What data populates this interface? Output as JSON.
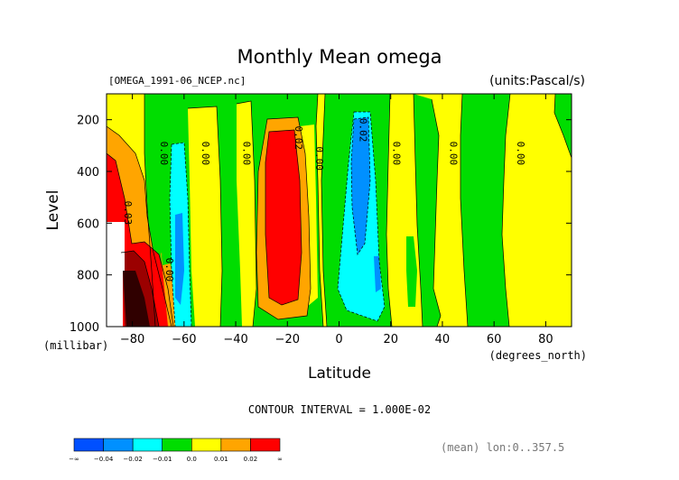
{
  "chart_data": {
    "type": "heatmap",
    "title": "Monthly Mean omega",
    "file_label": "[OMEGA_1991-06_NCEP.nc]",
    "units_label": "(units:Pascal/s)",
    "xlabel": "Latitude",
    "xunit": "(degrees_north)",
    "ylabel": "Level",
    "yunit": "(millibar)",
    "xlim": [
      -90,
      90
    ],
    "ylim": [
      1000,
      100
    ],
    "x_ticks": [
      -80,
      -60,
      -40,
      -20,
      0,
      20,
      40,
      60,
      80
    ],
    "y_ticks": [
      200,
      400,
      600,
      800,
      1000
    ],
    "contour_interval_text": "CONTOUR INTERVAL = 1.000E-02",
    "footer_text": "(mean) lon:0..357.5",
    "contour_labels": [
      {
        "text": "0.00",
        "lat": -69,
        "lev": 330
      },
      {
        "text": "0.00",
        "lat": -53,
        "lev": 330
      },
      {
        "text": "0.00",
        "lat": -37,
        "lev": 330
      },
      {
        "text": "0.02",
        "lat": -17,
        "lev": 270
      },
      {
        "text": "0.00",
        "lat": -9,
        "lev": 350
      },
      {
        "text": "0.02",
        "lat": 8,
        "lev": 240
      },
      {
        "text": "0.00",
        "lat": 21,
        "lev": 330
      },
      {
        "text": "0.00",
        "lat": 43,
        "lev": 330
      },
      {
        "text": "0.00",
        "lat": 69,
        "lev": 330
      },
      {
        "text": "0.03",
        "lat": -83,
        "lev": 560
      },
      {
        "text": "0.00",
        "lat": -67,
        "lev": 780
      }
    ],
    "colorbar": {
      "labels": [
        "-∞",
        "-0.04",
        "-0.02",
        "-0.01",
        "0.0",
        "0.01",
        "0.02",
        "∞"
      ],
      "colors": [
        "#0050ff",
        "#0090ff",
        "#00ffff",
        "#00dd00",
        "#ffff00",
        "#ffa500",
        "#ff0000"
      ]
    },
    "series": [
      {
        "level": "0.00 to 0.01",
        "color": "#ffff00"
      },
      {
        "level": "-0.01 to 0.00",
        "color": "#00dd00"
      },
      {
        "level": "-0.02 to -0.01",
        "color": "#00ffff"
      },
      {
        "level": "-0.04 to -0.02",
        "color": "#0090ff"
      },
      {
        "level": "0.01 to 0.02",
        "color": "#ffa500"
      },
      {
        "level": "> 0.02",
        "color": "#ff0000"
      }
    ]
  }
}
